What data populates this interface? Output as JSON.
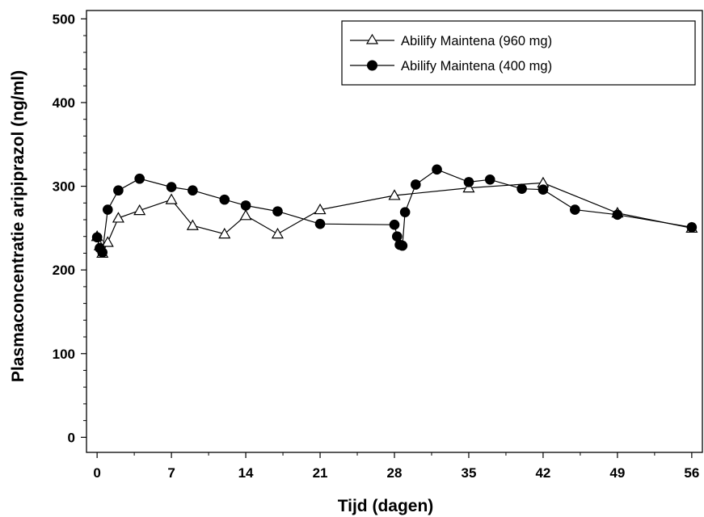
{
  "chart_data": {
    "type": "line",
    "xlabel": "Tijd (dagen)",
    "ylabel": "Plasmaconcentratie aripiprazol (ng/ml)",
    "xlim": [
      -1,
      57
    ],
    "ylim": [
      -18,
      510
    ],
    "x_ticks": [
      "0",
      "7",
      "14",
      "21",
      "28",
      "35",
      "42",
      "49",
      "56"
    ],
    "x_tick_values": [
      0,
      7,
      14,
      21,
      28,
      35,
      42,
      49,
      56
    ],
    "y_ticks": [
      "0",
      "100",
      "200",
      "300",
      "400",
      "500"
    ],
    "y_tick_values": [
      0,
      100,
      200,
      300,
      400,
      500
    ],
    "grid": false,
    "legend_position": "top-right",
    "series": [
      {
        "name": "Abilify Maintena (960 mg)",
        "marker": "open-triangle",
        "x": [
          0,
          0.25,
          0.5,
          1,
          2,
          4,
          7,
          9,
          12,
          14,
          17,
          21,
          28,
          35,
          42,
          49,
          56
        ],
        "y": [
          240,
          229,
          220,
          233,
          262,
          271,
          284,
          253,
          243,
          265,
          243,
          272,
          289,
          298,
          304,
          268,
          250
        ]
      },
      {
        "name": "Abilify Maintena (400 mg)",
        "marker": "filled-circle",
        "x": [
          0,
          0.25,
          0.5,
          1,
          2,
          4,
          7,
          9,
          12,
          14,
          17,
          21,
          28,
          28.25,
          28.5,
          28.75,
          29,
          30,
          32,
          35,
          37,
          40,
          42,
          45,
          49,
          56
        ],
        "y": [
          239,
          226,
          221,
          272,
          295,
          309,
          299,
          295,
          284,
          277,
          270,
          255,
          254,
          240,
          230,
          229,
          269,
          302,
          320,
          305,
          308,
          297,
          296,
          272,
          266,
          251
        ]
      }
    ]
  }
}
